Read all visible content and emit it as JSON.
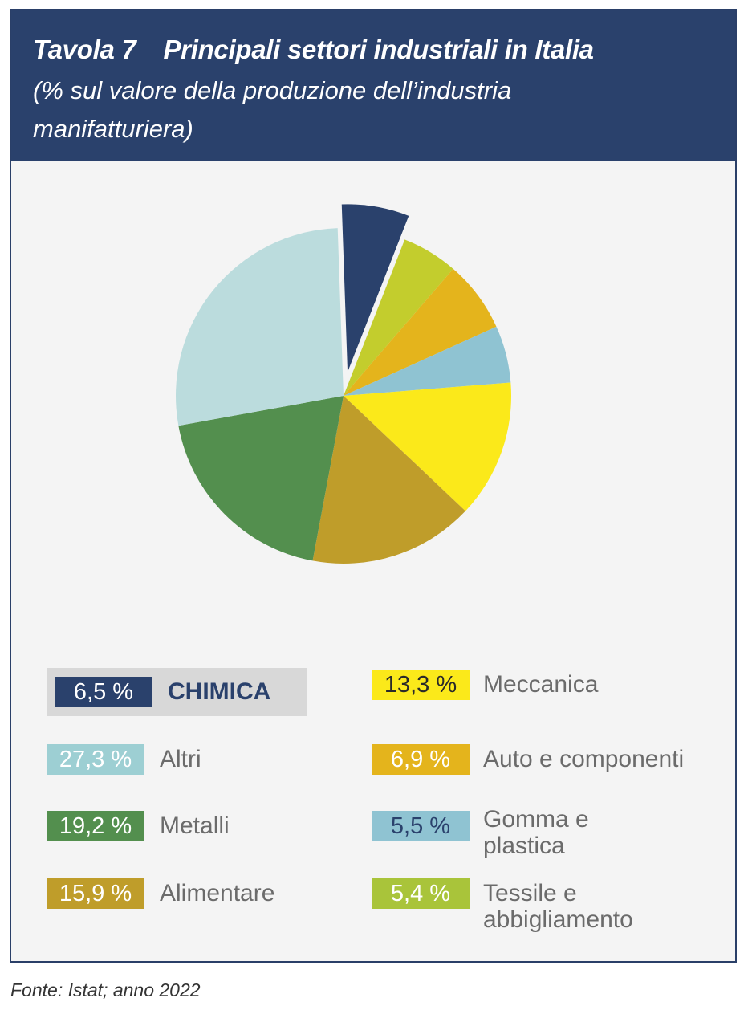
{
  "header": {
    "table_number": "Tavola 7",
    "title": "Principali settori industriali in Italia",
    "subtitle": "(% sul valore della produzione dell’industria manifatturiera)"
  },
  "source": "Fonte: Istat; anno 2022",
  "chart_data": {
    "type": "pie",
    "slices": [
      {
        "name": "CHIMICA",
        "value": 6.5,
        "label": "6,5 %",
        "color": "#2a416c",
        "exploded": true
      },
      {
        "name": "Tessile e abbigliamento",
        "value": 5.4,
        "label": "5,4 %",
        "color": "#c3cd2d"
      },
      {
        "name": "Auto e componenti",
        "value": 6.9,
        "label": "6,9 %",
        "color": "#e4b41c"
      },
      {
        "name": "Gomma e plastica",
        "value": 5.5,
        "label": "5,5 %",
        "color": "#8fc3d2"
      },
      {
        "name": "Meccanica",
        "value": 13.3,
        "label": "13,3 %",
        "color": "#fbe91a"
      },
      {
        "name": "Alimentare",
        "value": 15.9,
        "label": "15,9 %",
        "color": "#bf9d2a"
      },
      {
        "name": "Metalli",
        "value": 19.2,
        "label": "19,2 %",
        "color": "#538f4e"
      },
      {
        "name": "Altri",
        "value": 27.3,
        "label": "27,3 %",
        "color": "#bbdcdd"
      }
    ]
  },
  "legend": {
    "left": [
      {
        "value": "6,5 %",
        "label": "CHIMICA",
        "color": "#2a416c"
      },
      {
        "value": "27,3 %",
        "label": "Altri",
        "color": "#9dcfd3"
      },
      {
        "value": "19,2 %",
        "label": "Metalli",
        "color": "#538f4e"
      },
      {
        "value": "15,9 %",
        "label": "Alimentare",
        "color": "#bf9d2a"
      }
    ],
    "right": [
      {
        "value": "13,3 %",
        "label": "Meccanica",
        "color": "#fbe91a"
      },
      {
        "value": "6,9 %",
        "label": "Auto e componenti",
        "color": "#e4b41c"
      },
      {
        "value": "5,5 %",
        "label_line1": "Gomma e",
        "label_line2": "plastica",
        "color": "#8fc3d2"
      },
      {
        "value": "5,4 %",
        "label_line1": "Tessile e",
        "label_line2": "abbigliamento",
        "color": "#a9c43a"
      }
    ]
  }
}
